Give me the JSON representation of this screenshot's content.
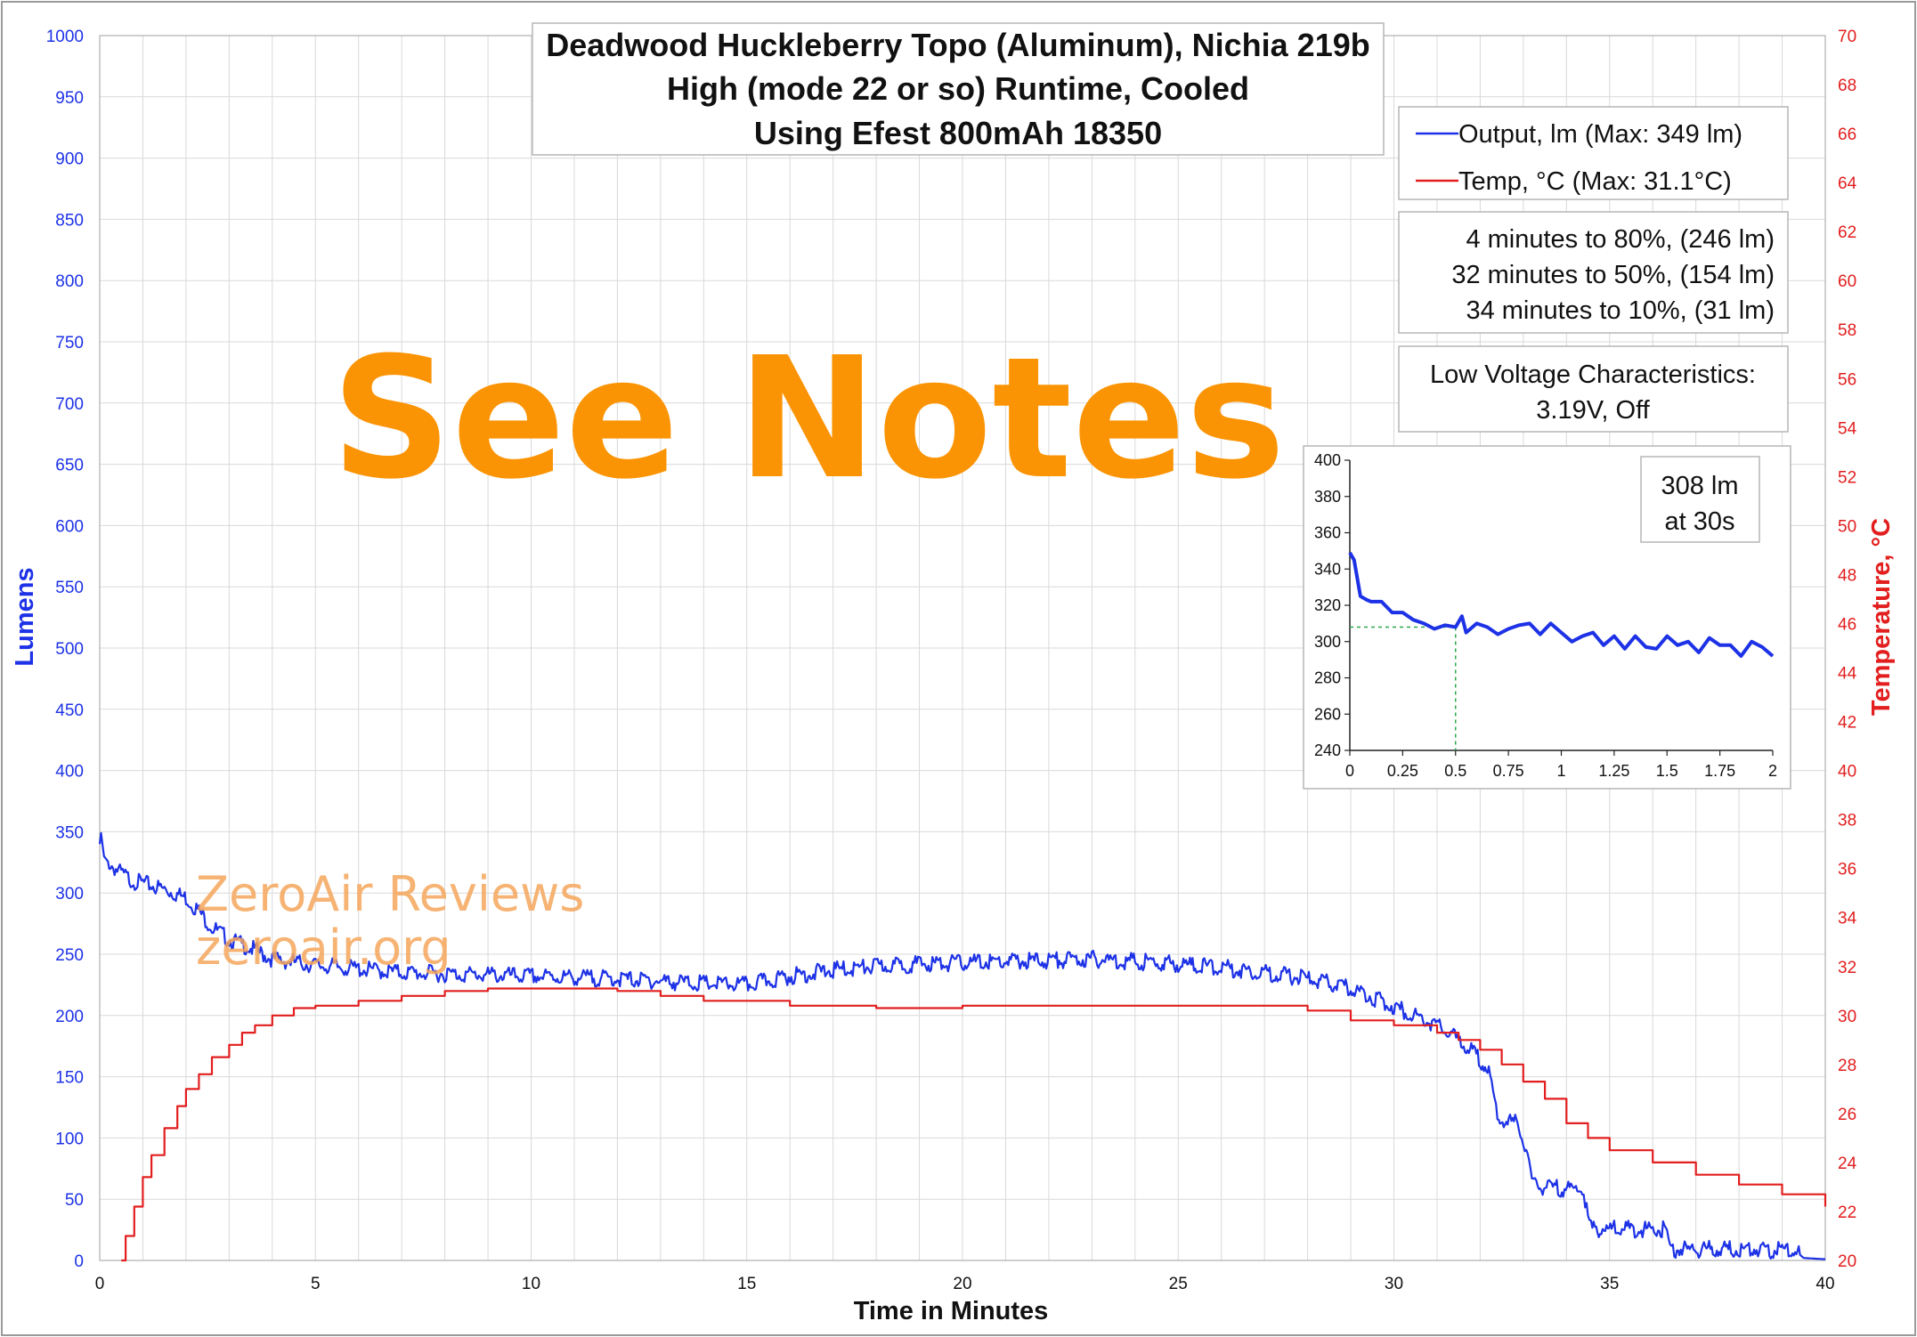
{
  "colors": {
    "output": "#1d32e6",
    "temperature": "#e21e1e",
    "grid": "#d9d9d9",
    "see_notes": "#fb9404",
    "watermark": "#f5a65a",
    "inset_marker": "#2ba84a"
  },
  "chart_data": [
    {
      "id": "main",
      "type": "line",
      "title_lines": [
        "Deadwood Huckleberry Topo (Aluminum), Nichia 219b",
        "High (mode 22 or so) Runtime, Cooled",
        "Using Efest 800mAh 18350"
      ],
      "xlabel": "Time in Minutes",
      "ylabel": "Lumens",
      "y2label": "Temperature, °C",
      "xlim": [
        0,
        40
      ],
      "ylim": [
        0,
        1000
      ],
      "y2lim": [
        20,
        70
      ],
      "x_ticks": [
        "0",
        "5",
        "10",
        "15",
        "20",
        "25",
        "30",
        "35",
        "40"
      ],
      "y_ticks": [
        "0",
        "50",
        "100",
        "150",
        "200",
        "250",
        "300",
        "350",
        "400",
        "450",
        "500",
        "550",
        "600",
        "650",
        "700",
        "750",
        "800",
        "850",
        "900",
        "950",
        "1000"
      ],
      "y2_ticks": [
        "20",
        "22",
        "24",
        "26",
        "28",
        "30",
        "32",
        "34",
        "36",
        "38",
        "40",
        "42",
        "44",
        "46",
        "48",
        "50",
        "52",
        "54",
        "56",
        "58",
        "60",
        "62",
        "64",
        "66",
        "68",
        "70"
      ],
      "grid": true,
      "legend_position": "top-right",
      "series": [
        {
          "name": "Output, lm (Max: 349 lm)",
          "axis": "left",
          "color": "#1d32e6",
          "x": [
            0,
            0.03,
            0.1,
            0.25,
            0.5,
            0.75,
            1,
            1.5,
            2,
            2.3,
            2.6,
            3,
            3.5,
            4,
            5,
            6,
            7,
            8,
            9,
            10,
            11,
            12,
            13,
            14,
            15,
            16,
            17,
            18,
            19,
            20,
            21,
            22,
            23,
            24,
            25,
            26,
            27,
            28,
            28.5,
            29,
            29.5,
            30,
            30.5,
            31,
            31.5,
            32,
            32.2,
            32.3,
            32.4,
            32.9,
            33,
            33.1,
            33.2,
            33.3,
            34.4,
            34.5,
            34.6,
            36.3,
            36.4,
            36.5,
            38.5,
            39,
            39.3,
            39.5,
            40
          ],
          "y": [
            340,
            349,
            330,
            323,
            316,
            310,
            308,
            303,
            296,
            285,
            272,
            262,
            255,
            246,
            241,
            238,
            235,
            234,
            233,
            232,
            231,
            230,
            228,
            226,
            225,
            232,
            237,
            240,
            242,
            243,
            244,
            245,
            246,
            244,
            242,
            239,
            235,
            230,
            226,
            222,
            215,
            207,
            200,
            192,
            180,
            164,
            154,
            135,
            115,
            112,
            95,
            90,
            62,
            60,
            58,
            31,
            26,
            25,
            10,
            9,
            9,
            8,
            8,
            2,
            1
          ]
        },
        {
          "name": "Temp, °C (Max: 31.1°C)",
          "axis": "right",
          "color": "#e21e1e",
          "x": [
            0.5,
            0.6,
            0.8,
            1,
            1.2,
            1.5,
            1.8,
            2,
            2.3,
            2.6,
            3,
            3.3,
            3.6,
            4,
            4.5,
            5,
            6,
            7,
            8,
            9,
            10,
            11,
            12,
            13,
            14,
            15,
            16,
            17,
            18,
            19,
            20,
            21,
            22,
            23,
            24,
            25,
            26,
            27,
            28,
            29,
            30,
            31,
            31.5,
            32,
            32.5,
            33,
            33.5,
            34,
            34.5,
            35,
            36,
            37,
            38,
            39,
            40
          ],
          "y": [
            20,
            21,
            22.2,
            23.4,
            24.3,
            25.4,
            26.3,
            27,
            27.6,
            28.3,
            28.8,
            29.3,
            29.6,
            30,
            30.3,
            30.4,
            30.6,
            30.8,
            31,
            31.1,
            31.1,
            31.1,
            31,
            30.8,
            30.6,
            30.6,
            30.4,
            30.4,
            30.3,
            30.3,
            30.4,
            30.4,
            30.4,
            30.4,
            30.4,
            30.4,
            30.4,
            30.4,
            30.2,
            29.8,
            29.6,
            29.3,
            29,
            28.6,
            28,
            27.3,
            26.6,
            25.6,
            25,
            24.5,
            24,
            23.5,
            23.1,
            22.7,
            22.2
          ]
        }
      ],
      "legend": [
        "Output, lm (Max: 349 lm)",
        "Temp, °C (Max: 31.1°C)"
      ],
      "annotations": {
        "milestones": [
          "4 minutes to 80%, (246 lm)",
          "32 minutes to 50%, (154 lm)",
          "34 minutes to 10%, (31 lm)"
        ],
        "low_voltage": [
          "Low Voltage Characteristics:",
          "3.19V, Off"
        ],
        "see_notes": "See Notes",
        "watermark": [
          "ZeroAir Reviews",
          "zeroair.org"
        ]
      }
    },
    {
      "id": "inset",
      "type": "line",
      "xlim": [
        0,
        2
      ],
      "ylim": [
        240,
        400
      ],
      "x_ticks": [
        "0",
        "0.25",
        "0.5",
        "0.75",
        "1",
        "1.25",
        "1.5",
        "1.75",
        "2"
      ],
      "y_ticks": [
        "240",
        "260",
        "280",
        "300",
        "320",
        "340",
        "360",
        "380",
        "400"
      ],
      "grid": false,
      "series": [
        {
          "color": "#1d32e6",
          "x": [
            0,
            0.02,
            0.05,
            0.08,
            0.1,
            0.15,
            0.2,
            0.25,
            0.3,
            0.35,
            0.4,
            0.45,
            0.5,
            0.53,
            0.55,
            0.6,
            0.65,
            0.7,
            0.75,
            0.8,
            0.85,
            0.9,
            0.95,
            1,
            1.05,
            1.1,
            1.15,
            1.2,
            1.25,
            1.3,
            1.35,
            1.4,
            1.45,
            1.5,
            1.55,
            1.6,
            1.65,
            1.7,
            1.75,
            1.8,
            1.85,
            1.9,
            1.95,
            2
          ],
          "y": [
            349,
            345,
            325,
            323,
            322,
            322,
            316,
            316,
            312,
            310,
            307,
            309,
            308,
            314,
            305,
            310,
            308,
            304,
            307,
            309,
            310,
            304,
            310,
            305,
            300,
            303,
            305,
            298,
            303,
            296,
            303,
            297,
            296,
            303,
            298,
            300,
            294,
            302,
            298,
            298,
            292,
            300,
            297,
            292
          ]
        }
      ],
      "marker_point": {
        "x": 0.5,
        "y": 308
      },
      "callout": [
        "308 lm",
        "at 30s"
      ]
    }
  ]
}
